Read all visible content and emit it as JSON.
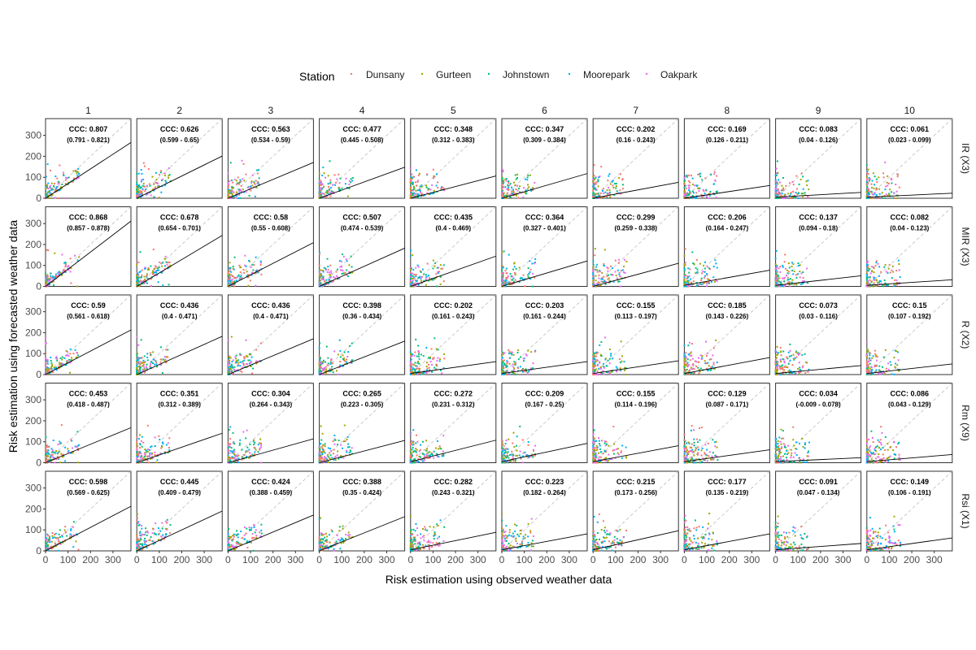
{
  "legend": {
    "title": "Station",
    "items": [
      {
        "label": "Dunsany",
        "color": "#F8766D"
      },
      {
        "label": "Gurteen",
        "color": "#A3A500"
      },
      {
        "label": "Johnstown",
        "color": "#00BF7D"
      },
      {
        "label": "Moorepark",
        "color": "#00B0F6"
      },
      {
        "label": "Oakpark",
        "color": "#E76BF3"
      }
    ]
  },
  "chart_data": {
    "type": "scatter",
    "xlabel": "Risk estimation using observed weather data",
    "ylabel": "Risk estimation using forecasted weather data",
    "xlim": [
      0,
      380
    ],
    "ylim": [
      0,
      380
    ],
    "xticks": [
      0,
      100,
      200,
      300
    ],
    "yticks": [
      0,
      100,
      200,
      300
    ],
    "grid": false,
    "legend_position": "top",
    "columns": [
      "1",
      "2",
      "3",
      "4",
      "5",
      "6",
      "7",
      "8",
      "9",
      "10"
    ],
    "rows": [
      "IR (X3)",
      "MIR (X3)",
      "R (X2)",
      "Rm (X9)",
      "Rsi (X1)"
    ],
    "reference_line": "y = x (dashed)",
    "panels": [
      [
        {
          "ccc": "CCC: 0.807",
          "ci": "(0.791 - 0.821)",
          "slope": 0.7,
          "intercept": 0
        },
        {
          "ccc": "CCC: 0.626",
          "ci": "(0.599 - 0.65)",
          "slope": 0.53,
          "intercept": 0
        },
        {
          "ccc": "CCC: 0.563",
          "ci": "(0.534 - 0.59)",
          "slope": 0.45,
          "intercept": 0
        },
        {
          "ccc": "CCC: 0.477",
          "ci": "(0.445 - 0.508)",
          "slope": 0.39,
          "intercept": 0
        },
        {
          "ccc": "CCC: 0.348",
          "ci": "(0.312 - 0.383)",
          "slope": 0.28,
          "intercept": 0
        },
        {
          "ccc": "CCC: 0.347",
          "ci": "(0.309 - 0.384)",
          "slope": 0.31,
          "intercept": 0
        },
        {
          "ccc": "CCC: 0.202",
          "ci": "(0.16 - 0.243)",
          "slope": 0.2,
          "intercept": 0
        },
        {
          "ccc": "CCC: 0.169",
          "ci": "(0.126 - 0.211)",
          "slope": 0.16,
          "intercept": 0
        },
        {
          "ccc": "CCC: 0.083",
          "ci": "(0.04 - 0.126)",
          "slope": 0.06,
          "intercept": 5
        },
        {
          "ccc": "CCC: 0.061",
          "ci": "(0.023 - 0.099)",
          "slope": 0.05,
          "intercept": 5
        }
      ],
      [
        {
          "ccc": "CCC: 0.868",
          "ci": "(0.857 - 0.878)",
          "slope": 0.82,
          "intercept": 0
        },
        {
          "ccc": "CCC: 0.678",
          "ci": "(0.654 - 0.701)",
          "slope": 0.64,
          "intercept": 0
        },
        {
          "ccc": "CCC: 0.58",
          "ci": "(0.55 - 0.608)",
          "slope": 0.55,
          "intercept": 0
        },
        {
          "ccc": "CCC: 0.507",
          "ci": "(0.474 - 0.539)",
          "slope": 0.48,
          "intercept": 0
        },
        {
          "ccc": "CCC: 0.435",
          "ci": "(0.4 - 0.469)",
          "slope": 0.38,
          "intercept": 0
        },
        {
          "ccc": "CCC: 0.364",
          "ci": "(0.327 - 0.401)",
          "slope": 0.32,
          "intercept": 0
        },
        {
          "ccc": "CCC: 0.299",
          "ci": "(0.259 - 0.338)",
          "slope": 0.29,
          "intercept": 0
        },
        {
          "ccc": "CCC: 0.206",
          "ci": "(0.164 - 0.247)",
          "slope": 0.19,
          "intercept": 5
        },
        {
          "ccc": "CCC: 0.137",
          "ci": "(0.094 - 0.18)",
          "slope": 0.12,
          "intercept": 5
        },
        {
          "ccc": "CCC: 0.082",
          "ci": "(0.04 - 0.123)",
          "slope": 0.07,
          "intercept": 5
        }
      ],
      [
        {
          "ccc": "CCC: 0.59",
          "ci": "(0.561 - 0.618)",
          "slope": 0.56,
          "intercept": 0
        },
        {
          "ccc": "CCC: 0.436",
          "ci": "(0.4 - 0.471)",
          "slope": 0.48,
          "intercept": 0
        },
        {
          "ccc": "CCC: 0.436",
          "ci": "(0.4 - 0.471)",
          "slope": 0.45,
          "intercept": 0
        },
        {
          "ccc": "CCC: 0.398",
          "ci": "(0.36 - 0.434)",
          "slope": 0.42,
          "intercept": 0
        },
        {
          "ccc": "CCC: 0.202",
          "ci": "(0.161 - 0.243)",
          "slope": 0.15,
          "intercept": 5
        },
        {
          "ccc": "CCC: 0.203",
          "ci": "(0.161 - 0.244)",
          "slope": 0.15,
          "intercept": 5
        },
        {
          "ccc": "CCC: 0.155",
          "ci": "(0.113 - 0.197)",
          "slope": 0.16,
          "intercept": 5
        },
        {
          "ccc": "CCC: 0.185",
          "ci": "(0.143 - 0.226)",
          "slope": 0.2,
          "intercept": 5
        },
        {
          "ccc": "CCC: 0.073",
          "ci": "(0.03 - 0.116)",
          "slope": 0.1,
          "intercept": 5
        },
        {
          "ccc": "CCC: 0.15",
          "ci": "(0.107 - 0.192)",
          "slope": 0.12,
          "intercept": 5
        }
      ],
      [
        {
          "ccc": "CCC: 0.453",
          "ci": "(0.418 - 0.487)",
          "slope": 0.44,
          "intercept": 0
        },
        {
          "ccc": "CCC: 0.351",
          "ci": "(0.312 - 0.389)",
          "slope": 0.37,
          "intercept": 0
        },
        {
          "ccc": "CCC: 0.304",
          "ci": "(0.264 - 0.343)",
          "slope": 0.3,
          "intercept": 0
        },
        {
          "ccc": "CCC: 0.265",
          "ci": "(0.223 - 0.305)",
          "slope": 0.28,
          "intercept": 0
        },
        {
          "ccc": "CCC: 0.272",
          "ci": "(0.231 - 0.312)",
          "slope": 0.27,
          "intercept": 5
        },
        {
          "ccc": "CCC: 0.209",
          "ci": "(0.167 - 0.25)",
          "slope": 0.23,
          "intercept": 5
        },
        {
          "ccc": "CCC: 0.155",
          "ci": "(0.114 - 0.196)",
          "slope": 0.2,
          "intercept": 5
        },
        {
          "ccc": "CCC: 0.129",
          "ci": "(0.087 - 0.171)",
          "slope": 0.15,
          "intercept": 5
        },
        {
          "ccc": "CCC: 0.034",
          "ci": "(-0.009 - 0.078)",
          "slope": 0.05,
          "intercept": 5
        },
        {
          "ccc": "CCC: 0.086",
          "ci": "(0.043 - 0.129)",
          "slope": 0.09,
          "intercept": 5
        }
      ],
      [
        {
          "ccc": "CCC: 0.598",
          "ci": "(0.569 - 0.625)",
          "slope": 0.56,
          "intercept": 0
        },
        {
          "ccc": "CCC: 0.445",
          "ci": "(0.409 - 0.479)",
          "slope": 0.5,
          "intercept": 0
        },
        {
          "ccc": "CCC: 0.424",
          "ci": "(0.388 - 0.459)",
          "slope": 0.45,
          "intercept": 0
        },
        {
          "ccc": "CCC: 0.388",
          "ci": "(0.35 - 0.424)",
          "slope": 0.43,
          "intercept": 0
        },
        {
          "ccc": "CCC: 0.282",
          "ci": "(0.243 - 0.321)",
          "slope": 0.22,
          "intercept": 5
        },
        {
          "ccc": "CCC: 0.223",
          "ci": "(0.182 - 0.264)",
          "slope": 0.2,
          "intercept": 5
        },
        {
          "ccc": "CCC: 0.215",
          "ci": "(0.173 - 0.256)",
          "slope": 0.24,
          "intercept": 5
        },
        {
          "ccc": "CCC: 0.177",
          "ci": "(0.135 - 0.219)",
          "slope": 0.2,
          "intercept": 5
        },
        {
          "ccc": "CCC: 0.091",
          "ci": "(0.047 - 0.134)",
          "slope": 0.08,
          "intercept": 5
        },
        {
          "ccc": "CCC: 0.149",
          "ci": "(0.106 - 0.191)",
          "slope": 0.15,
          "intercept": 5
        }
      ]
    ]
  }
}
